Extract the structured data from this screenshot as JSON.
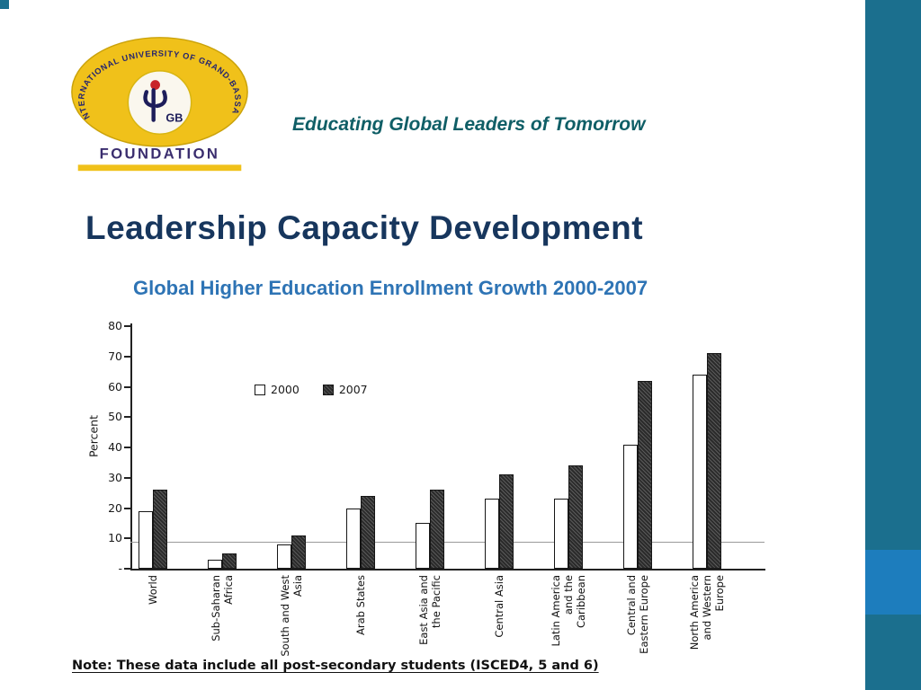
{
  "slide": {
    "tagline": "Educating Global Leaders of Tomorrow",
    "title": "Leadership Capacity Development",
    "subtitle": "Global Higher Education Enrollment Growth 2000-2007",
    "note": "Note: These data include all post-secondary students (ISCED4, 5 and 6)"
  },
  "logo": {
    "arc_text": "INTERNATIONAL UNIVERSITY OF GRAND-BASSAM",
    "monogram": "GB",
    "foundation": "FOUNDATION",
    "colors": {
      "ellipse": "#f0c11a",
      "arc_text": "#26266e",
      "foundation_text": "#3a2d6e"
    }
  },
  "theme": {
    "band_color": "#1b6f8e",
    "band_accent_color": "#1d7dbd",
    "title_color": "#17365d",
    "subtitle_color": "#2e74b5",
    "tagline_color": "#0f5e66"
  },
  "chart_data": {
    "type": "bar",
    "title": "Global Higher Education Enrollment Growth 2000-2007",
    "xlabel": "",
    "ylabel": "Percent",
    "ylim": [
      0,
      80
    ],
    "yticks": [
      80,
      70,
      60,
      50,
      40,
      30,
      20,
      10,
      0
    ],
    "ytick_labels": [
      "80",
      "70",
      "60",
      "50",
      "40",
      "30",
      "20",
      "10",
      "-"
    ],
    "reference_line": 9,
    "grid": false,
    "legend_position": "upper-left-inside",
    "categories": [
      "World",
      "Sub-Saharan\nAfrica",
      "South and West\nAsia",
      "Arab States",
      "East Asia and\nthe Pacific",
      "Central Asia",
      "Latin America\nand the\nCaribbean",
      "Central and\nEastern Europe",
      "North America\nand Western\nEurope"
    ],
    "series": [
      {
        "name": "2000",
        "values": [
          19,
          3,
          8,
          20,
          15,
          23,
          23,
          41,
          64
        ]
      },
      {
        "name": "2007",
        "values": [
          26,
          5,
          11,
          24,
          26,
          31,
          34,
          62,
          71
        ]
      }
    ]
  }
}
